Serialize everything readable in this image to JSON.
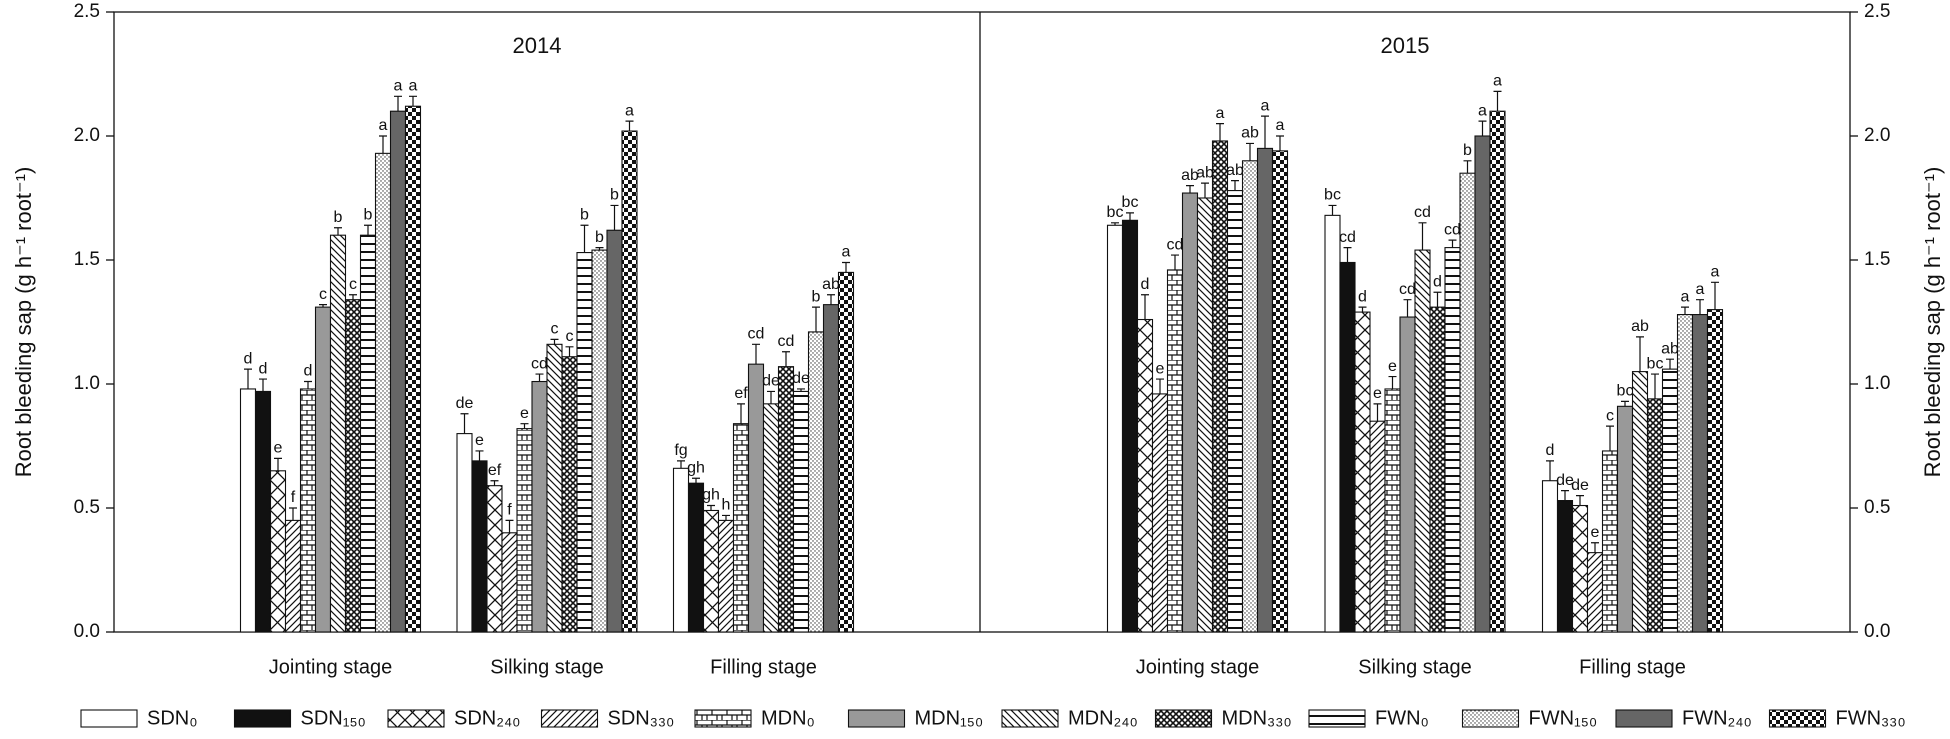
{
  "chart_data": [
    {
      "type": "bar",
      "title": "2014",
      "ylabel": "Root bleeding sap (g h⁻¹ root⁻¹)",
      "categories": [
        "Jointing stage",
        "Silking stage",
        "Filling stage"
      ],
      "ylim": [
        0,
        2.5
      ],
      "yticks": [
        {
          "value": 0,
          "label": "0.0"
        },
        0.5,
        {
          "value": 1,
          "label": "1.0"
        },
        1.5,
        {
          "value": 2,
          "label": "2.0"
        },
        2.5
      ],
      "series": [
        {
          "name": "SDN₀",
          "pattern": "white",
          "values": [
            0.98,
            0.8,
            0.66
          ],
          "errors": [
            0.08,
            0.08,
            0.03
          ],
          "letters": [
            "d",
            "de",
            "fg"
          ]
        },
        {
          "name": "SDN₁₅₀",
          "pattern": "black",
          "values": [
            0.97,
            0.69,
            0.6
          ],
          "errors": [
            0.05,
            0.04,
            0.02
          ],
          "letters": [
            "d",
            "e",
            "gh"
          ]
        },
        {
          "name": "SDN₂₄₀",
          "pattern": "cross",
          "values": [
            0.65,
            0.59,
            0.49
          ],
          "errors": [
            0.05,
            0.02,
            0.02
          ],
          "letters": [
            "e",
            "ef",
            "gh"
          ]
        },
        {
          "name": "SDN₃₃₀",
          "pattern": "diag",
          "values": [
            0.45,
            0.4,
            0.45
          ],
          "errors": [
            0.05,
            0.05,
            0.02
          ],
          "letters": [
            "f",
            "f",
            "h"
          ]
        },
        {
          "name": "MDN₀",
          "pattern": "brick",
          "values": [
            0.98,
            0.82,
            0.84
          ],
          "errors": [
            0.03,
            0.02,
            0.08
          ],
          "letters": [
            "d",
            "e",
            "ef"
          ]
        },
        {
          "name": "MDN₁₅₀",
          "pattern": "gray",
          "values": [
            1.31,
            1.01,
            1.08
          ],
          "errors": [
            0.01,
            0.03,
            0.08
          ],
          "letters": [
            "c",
            "cd",
            "cd"
          ]
        },
        {
          "name": "MDN₂₄₀",
          "pattern": "backdiag",
          "values": [
            1.6,
            1.16,
            0.92
          ],
          "errors": [
            0.03,
            0.02,
            0.05
          ],
          "letters": [
            "b",
            "c",
            "de"
          ]
        },
        {
          "name": "MDN₃₃₀",
          "pattern": "crosshatch",
          "values": [
            1.34,
            1.11,
            1.07
          ],
          "errors": [
            0.02,
            0.04,
            0.06
          ],
          "letters": [
            "c",
            "c",
            "cd"
          ]
        },
        {
          "name": "FWN₀",
          "pattern": "hlines",
          "values": [
            1.6,
            1.53,
            0.97
          ],
          "errors": [
            0.04,
            0.11,
            0.01
          ],
          "letters": [
            "b",
            "b",
            "de"
          ]
        },
        {
          "name": "FWN₁₅₀",
          "pattern": "dots",
          "values": [
            1.93,
            1.54,
            1.21
          ],
          "errors": [
            0.07,
            0.01,
            0.1
          ],
          "letters": [
            "a",
            "b",
            "b"
          ]
        },
        {
          "name": "FWN₂₄₀",
          "pattern": "darkgray",
          "values": [
            2.1,
            1.62,
            1.32
          ],
          "errors": [
            0.06,
            0.1,
            0.04
          ],
          "letters": [
            "a",
            "b",
            "ab"
          ]
        },
        {
          "name": "FWN₃₃₀",
          "pattern": "checker",
          "values": [
            2.12,
            2.02,
            1.45
          ],
          "errors": [
            0.04,
            0.04,
            0.04
          ],
          "letters": [
            "a",
            "a",
            "a"
          ]
        }
      ]
    },
    {
      "type": "bar",
      "title": "2015",
      "ylabel": "Root bleeding sap (g h⁻¹ root⁻¹)",
      "categories": [
        "Jointing stage",
        "Silking stage",
        "Filling stage"
      ],
      "ylim": [
        0,
        2.5
      ],
      "yticks": [
        {
          "value": 0,
          "label": "0.0"
        },
        0.5,
        {
          "value": 1,
          "label": "1.0"
        },
        1.5,
        {
          "value": 2,
          "label": "2.0"
        },
        2.5
      ],
      "series": [
        {
          "values": [
            1.64,
            1.68,
            0.61
          ],
          "errors": [
            0.01,
            0.04,
            0.08
          ],
          "letters": [
            "bc",
            "bc",
            "d"
          ]
        },
        {
          "values": [
            1.66,
            1.49,
            0.53
          ],
          "errors": [
            0.03,
            0.06,
            0.04
          ],
          "letters": [
            "bc",
            "cd",
            "de"
          ]
        },
        {
          "values": [
            1.26,
            1.29,
            0.51
          ],
          "errors": [
            0.1,
            0.02,
            0.04
          ],
          "letters": [
            "d",
            "d",
            "de"
          ]
        },
        {
          "values": [
            0.96,
            0.85,
            0.32
          ],
          "errors": [
            0.06,
            0.07,
            0.04
          ],
          "letters": [
            "e",
            "e",
            "e"
          ]
        },
        {
          "values": [
            1.46,
            0.98,
            0.73
          ],
          "errors": [
            0.06,
            0.05,
            0.1
          ],
          "letters": [
            "cd",
            "e",
            "c"
          ]
        },
        {
          "values": [
            1.77,
            1.27,
            0.91
          ],
          "errors": [
            0.03,
            0.07,
            0.02
          ],
          "letters": [
            "ab",
            "cd",
            "bc"
          ]
        },
        {
          "values": [
            1.75,
            1.54,
            1.05
          ],
          "errors": [
            0.06,
            0.11,
            0.14
          ],
          "letters": [
            "ab",
            "cd",
            "ab"
          ]
        },
        {
          "values": [
            1.98,
            1.31,
            0.94
          ],
          "errors": [
            0.07,
            0.06,
            0.1
          ],
          "letters": [
            "a",
            "d",
            "bc"
          ]
        },
        {
          "values": [
            1.78,
            1.55,
            1.06
          ],
          "errors": [
            0.04,
            0.03,
            0.04
          ],
          "letters": [
            "ab",
            "cd",
            "ab"
          ]
        },
        {
          "values": [
            1.9,
            1.85,
            1.28
          ],
          "errors": [
            0.07,
            0.05,
            0.03
          ],
          "letters": [
            "ab",
            "b",
            "a"
          ]
        },
        {
          "values": [
            1.95,
            2.0,
            1.28
          ],
          "errors": [
            0.13,
            0.06,
            0.06
          ],
          "letters": [
            "a",
            "a",
            "a"
          ]
        },
        {
          "values": [
            1.94,
            2.1,
            1.3
          ],
          "errors": [
            0.06,
            0.08,
            0.11
          ],
          "letters": [
            "a",
            "a",
            "a"
          ]
        }
      ]
    }
  ]
}
